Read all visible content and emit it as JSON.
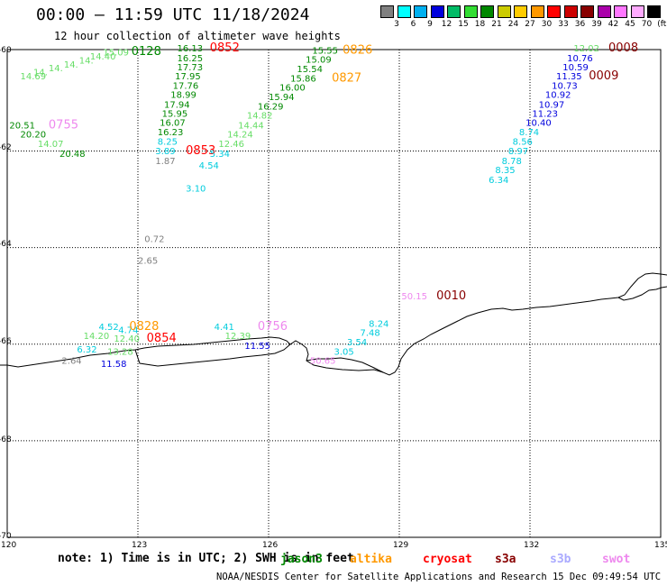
{
  "header": {
    "title": "00:00  –  11:59 UTC 11/18/2024",
    "subtitle": "12 hour collection of altimeter wave heights"
  },
  "colorbar": {
    "colors": [
      "#808080",
      "#00ffff",
      "#00b0f0",
      "#0000dd",
      "#00bb66",
      "#33dd33",
      "#008800",
      "#cccc00",
      "#ffcc00",
      "#ff9900",
      "#ff0000",
      "#cc0000",
      "#880000",
      "#aa00aa",
      "#ff77ff",
      "#ffaaff",
      "#000000"
    ],
    "labels": [
      "3",
      "6",
      "9",
      "12",
      "15",
      "18",
      "21",
      "24",
      "27",
      "30",
      "33",
      "36",
      "39",
      "42",
      "45",
      "70",
      "(ft)"
    ]
  },
  "axes": {
    "x_ticks": [
      "120",
      "123",
      "126",
      "129",
      "132",
      "135"
    ],
    "y_ticks": [
      "-60",
      "-62",
      "-64",
      "-66",
      "-68",
      "-70"
    ]
  },
  "wave_labels": [
    {
      "t": "14.69",
      "c": "#66dd66",
      "lon": 120.3,
      "lat": -60.52
    },
    {
      "t": "14.",
      "c": "#66dd66",
      "lon": 120.6,
      "lat": -60.43
    },
    {
      "t": "14.",
      "c": "#66dd66",
      "lon": 120.95,
      "lat": -60.35
    },
    {
      "t": "14.",
      "c": "#66dd66",
      "lon": 121.3,
      "lat": -60.27
    },
    {
      "t": "14.",
      "c": "#66dd66",
      "lon": 121.65,
      "lat": -60.19
    },
    {
      "t": "14.40",
      "c": "#66dd66",
      "lon": 121.9,
      "lat": -60.11
    },
    {
      "t": "15.09",
      "c": "#66dd66",
      "lon": 122.2,
      "lat": -60.02
    },
    {
      "t": "0128",
      "c": "#008800",
      "lon": 122.85,
      "lat": -60.01
    },
    {
      "t": "16.13",
      "c": "#008800",
      "lon": 123.9,
      "lat": -59.94
    },
    {
      "t": "16.25",
      "c": "#008800",
      "lon": 123.9,
      "lat": -60.14
    },
    {
      "t": "17.73",
      "c": "#008800",
      "lon": 123.9,
      "lat": -60.33
    },
    {
      "t": "17.95",
      "c": "#008800",
      "lon": 123.85,
      "lat": -60.52
    },
    {
      "t": "17.76",
      "c": "#008800",
      "lon": 123.8,
      "lat": -60.71
    },
    {
      "t": "18.99",
      "c": "#008800",
      "lon": 123.75,
      "lat": -60.9
    },
    {
      "t": "17.94",
      "c": "#008800",
      "lon": 123.6,
      "lat": -61.1
    },
    {
      "t": "15.95",
      "c": "#008800",
      "lon": 123.55,
      "lat": -61.29
    },
    {
      "t": "16.07",
      "c": "#008800",
      "lon": 123.5,
      "lat": -61.48
    },
    {
      "t": "16.23",
      "c": "#008800",
      "lon": 123.45,
      "lat": -61.67
    },
    {
      "t": "8.25",
      "c": "#00ccdd",
      "lon": 123.45,
      "lat": -61.87
    },
    {
      "t": "3.89",
      "c": "#00ccdd",
      "lon": 123.4,
      "lat": -62.07
    },
    {
      "t": "1.87",
      "c": "#808080",
      "lon": 123.4,
      "lat": -62.27
    },
    {
      "t": "0852",
      "c": "#ff0000",
      "lon": 124.65,
      "lat": -59.94
    },
    {
      "t": "0853",
      "c": "#ff0000",
      "lon": 124.1,
      "lat": -62.07
    },
    {
      "t": "15.55",
      "c": "#008800",
      "lon": 127.0,
      "lat": -59.98
    },
    {
      "t": "15.09",
      "c": "#008800",
      "lon": 126.85,
      "lat": -60.17
    },
    {
      "t": "15.54",
      "c": "#008800",
      "lon": 126.65,
      "lat": -60.37
    },
    {
      "t": "15.86",
      "c": "#008800",
      "lon": 126.5,
      "lat": -60.56
    },
    {
      "t": "16.00",
      "c": "#008800",
      "lon": 126.25,
      "lat": -60.75
    },
    {
      "t": "15.94",
      "c": "#008800",
      "lon": 126.0,
      "lat": -60.95
    },
    {
      "t": "16.29",
      "c": "#008800",
      "lon": 125.75,
      "lat": -61.14
    },
    {
      "t": "14.82",
      "c": "#66dd66",
      "lon": 125.5,
      "lat": -61.33
    },
    {
      "t": "14.44",
      "c": "#66dd66",
      "lon": 125.3,
      "lat": -61.53
    },
    {
      "t": "14.24",
      "c": "#66dd66",
      "lon": 125.05,
      "lat": -61.72
    },
    {
      "t": "12.46",
      "c": "#66dd66",
      "lon": 124.85,
      "lat": -61.92
    },
    {
      "t": "5.34",
      "c": "#00ccdd",
      "lon": 124.65,
      "lat": -62.12
    },
    {
      "t": "4.54",
      "c": "#00ccdd",
      "lon": 124.4,
      "lat": -62.36
    },
    {
      "t": "3.10",
      "c": "#00ccdd",
      "lon": 124.1,
      "lat": -62.84
    },
    {
      "t": "0826",
      "c": "#ff9900",
      "lon": 127.7,
      "lat": -59.98
    },
    {
      "t": "0827",
      "c": "#ff9900",
      "lon": 127.45,
      "lat": -60.56
    },
    {
      "t": "12.02",
      "c": "#66dd66",
      "lon": 133.0,
      "lat": -59.94
    },
    {
      "t": "0008",
      "c": "#880000",
      "lon": 133.8,
      "lat": -59.94
    },
    {
      "t": "10.76",
      "c": "#0000dd",
      "lon": 132.85,
      "lat": -60.14
    },
    {
      "t": "10.59",
      "c": "#0000dd",
      "lon": 132.75,
      "lat": -60.33
    },
    {
      "t": "11.35",
      "c": "#0000dd",
      "lon": 132.6,
      "lat": -60.52
    },
    {
      "t": "0009",
      "c": "#880000",
      "lon": 133.35,
      "lat": -60.52
    },
    {
      "t": "10.73",
      "c": "#0000dd",
      "lon": 132.5,
      "lat": -60.71
    },
    {
      "t": "10.92",
      "c": "#0000dd",
      "lon": 132.35,
      "lat": -60.9
    },
    {
      "t": "10.97",
      "c": "#0000dd",
      "lon": 132.2,
      "lat": -61.1
    },
    {
      "t": "11.23",
      "c": "#0000dd",
      "lon": 132.05,
      "lat": -61.29
    },
    {
      "t": "10.40",
      "c": "#0000dd",
      "lon": 131.9,
      "lat": -61.48
    },
    {
      "t": "8.74",
      "c": "#00ccdd",
      "lon": 131.75,
      "lat": -61.67
    },
    {
      "t": "8.56",
      "c": "#00ccdd",
      "lon": 131.6,
      "lat": -61.87
    },
    {
      "t": "8.97",
      "c": "#00ccdd",
      "lon": 131.5,
      "lat": -62.07
    },
    {
      "t": "8.78",
      "c": "#00ccdd",
      "lon": 131.35,
      "lat": -62.27
    },
    {
      "t": "8.35",
      "c": "#00ccdd",
      "lon": 131.2,
      "lat": -62.46
    },
    {
      "t": "6.34",
      "c": "#00ccdd",
      "lon": 131.05,
      "lat": -62.66
    },
    {
      "t": "20.51",
      "c": "#008800",
      "lon": 120.05,
      "lat": -61.53
    },
    {
      "t": "20.20",
      "c": "#008800",
      "lon": 120.3,
      "lat": -61.72
    },
    {
      "t": "14.07",
      "c": "#66dd66",
      "lon": 120.7,
      "lat": -61.92
    },
    {
      "t": "20.48",
      "c": "#008800",
      "lon": 121.2,
      "lat": -62.12
    },
    {
      "t": "0755",
      "c": "#ee88ee",
      "lon": 120.95,
      "lat": -61.53
    },
    {
      "t": "0.72",
      "c": "#808080",
      "lon": 123.15,
      "lat": -63.89
    },
    {
      "t": "2.65",
      "c": "#808080",
      "lon": 123.0,
      "lat": -64.33
    },
    {
      "t": "50.15",
      "c": "#ee88ee",
      "lon": 129.05,
      "lat": -65.07
    },
    {
      "t": "0010",
      "c": "#880000",
      "lon": 129.85,
      "lat": -65.07
    },
    {
      "t": "4.52",
      "c": "#00ccdd",
      "lon": 122.1,
      "lat": -65.71
    },
    {
      "t": "4.74",
      "c": "#00ccdd",
      "lon": 122.55,
      "lat": -65.77
    },
    {
      "t": "0828",
      "c": "#ff9900",
      "lon": 122.8,
      "lat": -65.71
    },
    {
      "t": "14.20",
      "c": "#66dd66",
      "lon": 121.75,
      "lat": -65.89
    },
    {
      "t": "12.40",
      "c": "#66dd66",
      "lon": 122.45,
      "lat": -65.95
    },
    {
      "t": "0854",
      "c": "#ff0000",
      "lon": 123.2,
      "lat": -65.95
    },
    {
      "t": "6.32",
      "c": "#00ccdd",
      "lon": 121.6,
      "lat": -66.17
    },
    {
      "t": "13.28",
      "c": "#66dd66",
      "lon": 122.3,
      "lat": -66.22
    },
    {
      "t": "2.64",
      "c": "#808080",
      "lon": 121.25,
      "lat": -66.41
    },
    {
      "t": "11.58",
      "c": "#0000dd",
      "lon": 122.15,
      "lat": -66.47
    },
    {
      "t": "4.41",
      "c": "#00ccdd",
      "lon": 124.75,
      "lat": -65.71
    },
    {
      "t": "0756",
      "c": "#ee88ee",
      "lon": 125.75,
      "lat": -65.71
    },
    {
      "t": "12.39",
      "c": "#66dd66",
      "lon": 125.0,
      "lat": -65.89
    },
    {
      "t": "11.55",
      "c": "#0000dd",
      "lon": 125.45,
      "lat": -66.1
    },
    {
      "t": "8.24",
      "c": "#00ccdd",
      "lon": 128.3,
      "lat": -65.64
    },
    {
      "t": "7.48",
      "c": "#00ccdd",
      "lon": 128.1,
      "lat": -65.83
    },
    {
      "t": "3.54",
      "c": "#00ccdd",
      "lon": 127.8,
      "lat": -66.02
    },
    {
      "t": "3.05",
      "c": "#00ccdd",
      "lon": 127.5,
      "lat": -66.22
    },
    {
      "t": "50.65",
      "c": "#ee88ee",
      "lon": 126.95,
      "lat": -66.41
    }
  ],
  "footer": {
    "note": "note:  1) Time is in UTC;  2) SWH is in feet",
    "missions": [
      {
        "label": "jason3",
        "color": "#008800"
      },
      {
        "label": "altika",
        "color": "#ff9900"
      },
      {
        "label": "cryosat",
        "color": "#ff0000"
      },
      {
        "label": "s3a",
        "color": "#880000"
      },
      {
        "label": "s3b",
        "color": "#aaaaff"
      },
      {
        "label": "swot",
        "color": "#ee88ee"
      }
    ],
    "credit": "NOAA/NESDIS Center for Satellite Applications and Research    15 Dec 09:49:54 UTC 2024"
  }
}
